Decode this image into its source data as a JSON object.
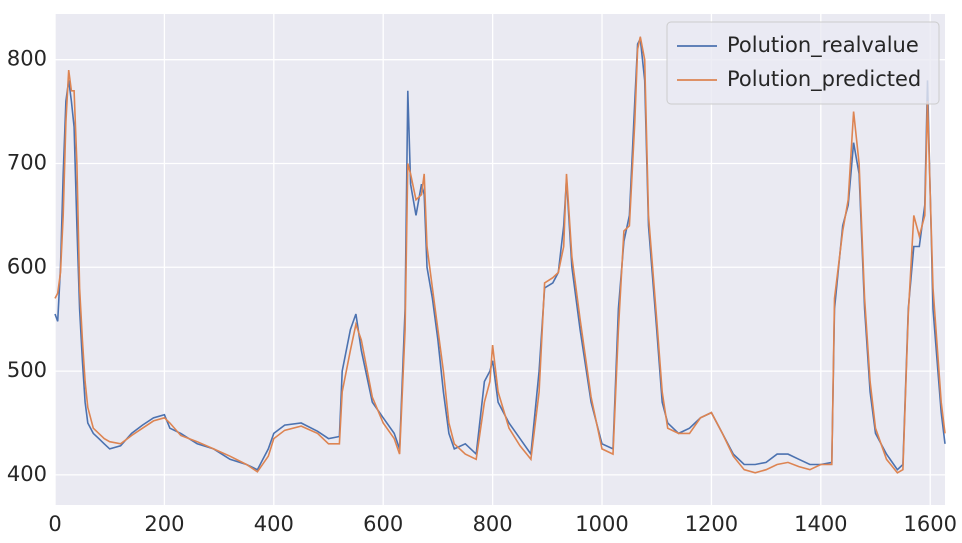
{
  "chart_data": {
    "type": "line",
    "x": [
      0,
      5,
      10,
      15,
      20,
      25,
      30,
      35,
      40,
      45,
      50,
      55,
      60,
      70,
      80,
      90,
      100,
      120,
      140,
      160,
      180,
      200,
      210,
      230,
      260,
      290,
      320,
      350,
      370,
      390,
      400,
      420,
      450,
      480,
      500,
      520,
      525,
      540,
      550,
      560,
      580,
      600,
      620,
      630,
      640,
      645,
      650,
      660,
      670,
      675,
      680,
      690,
      700,
      710,
      720,
      730,
      750,
      770,
      785,
      795,
      800,
      810,
      830,
      850,
      870,
      885,
      895,
      910,
      920,
      930,
      935,
      945,
      960,
      980,
      1000,
      1020,
      1030,
      1040,
      1050,
      1060,
      1065,
      1070,
      1078,
      1085,
      1100,
      1110,
      1120,
      1140,
      1160,
      1180,
      1200,
      1220,
      1240,
      1260,
      1280,
      1300,
      1320,
      1340,
      1360,
      1380,
      1400,
      1420,
      1425,
      1440,
      1450,
      1460,
      1470,
      1480,
      1490,
      1500,
      1520,
      1540,
      1550,
      1560,
      1570,
      1580,
      1590,
      1595,
      1605,
      1620,
      1627
    ],
    "series": [
      {
        "name": "Polution_realvalue",
        "color": "#4c72b0",
        "values": [
          555,
          548,
          600,
          690,
          760,
          780,
          760,
          735,
          640,
          560,
          510,
          470,
          450,
          440,
          435,
          430,
          425,
          428,
          440,
          448,
          455,
          458,
          445,
          440,
          430,
          425,
          415,
          410,
          405,
          425,
          440,
          448,
          450,
          442,
          435,
          437,
          500,
          540,
          555,
          520,
          470,
          455,
          440,
          425,
          560,
          770,
          680,
          650,
          680,
          670,
          600,
          570,
          530,
          480,
          440,
          425,
          430,
          420,
          490,
          500,
          510,
          470,
          450,
          435,
          420,
          500,
          580,
          585,
          595,
          640,
          685,
          600,
          540,
          470,
          430,
          425,
          560,
          625,
          650,
          760,
          815,
          820,
          780,
          640,
          540,
          470,
          450,
          440,
          445,
          455,
          460,
          440,
          420,
          410,
          410,
          412,
          420,
          420,
          415,
          410,
          410,
          412,
          560,
          640,
          660,
          720,
          690,
          560,
          480,
          440,
          420,
          405,
          410,
          560,
          620,
          620,
          660,
          780,
          560,
          460,
          430
        ]
      },
      {
        "name": "Polution_predicted",
        "color": "#dd8452",
        "values": [
          570,
          575,
          595,
          650,
          740,
          790,
          770,
          770,
          700,
          580,
          530,
          490,
          465,
          445,
          440,
          435,
          432,
          430,
          438,
          445,
          452,
          455,
          450,
          438,
          432,
          425,
          418,
          410,
          403,
          418,
          435,
          443,
          447,
          440,
          430,
          430,
          480,
          520,
          545,
          530,
          475,
          450,
          435,
          420,
          540,
          700,
          690,
          665,
          670,
          690,
          620,
          580,
          540,
          500,
          450,
          430,
          420,
          415,
          470,
          490,
          525,
          480,
          445,
          428,
          415,
          480,
          585,
          590,
          595,
          620,
          690,
          610,
          550,
          475,
          425,
          420,
          540,
          635,
          640,
          740,
          810,
          822,
          800,
          650,
          550,
          480,
          445,
          440,
          440,
          455,
          460,
          440,
          418,
          405,
          402,
          405,
          410,
          412,
          408,
          405,
          410,
          410,
          570,
          635,
          665,
          750,
          700,
          570,
          490,
          445,
          415,
          402,
          405,
          555,
          650,
          630,
          650,
          760,
          580,
          470,
          440
        ]
      }
    ],
    "xlim": [
      0,
      1627
    ],
    "ylim": [
      371,
      844
    ],
    "xticks": [
      0,
      200,
      400,
      600,
      800,
      1000,
      1200,
      1400,
      1600
    ],
    "yticks": [
      400,
      500,
      600,
      700,
      800
    ],
    "grid": true,
    "legend": "upper right"
  }
}
